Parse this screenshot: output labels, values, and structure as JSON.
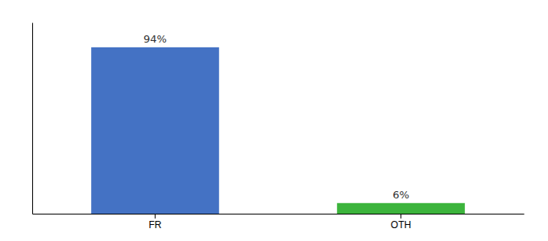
{
  "chart_data": {
    "type": "bar",
    "categories": [
      "FR",
      "OTH"
    ],
    "values": [
      94,
      6
    ],
    "value_labels": [
      "94%",
      "6%"
    ],
    "colors": [
      "#4472c4",
      "#3cb43c"
    ],
    "ylim": [
      0,
      108
    ],
    "data_labels": true,
    "tick_labels": "x"
  }
}
